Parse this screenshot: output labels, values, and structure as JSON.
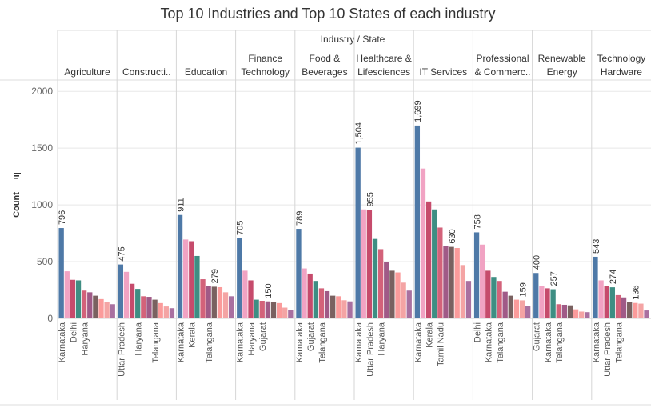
{
  "chart_data": {
    "type": "bar",
    "title": "Top 10 Industries and Top 10 States of each industry",
    "column_header": "Industry / State",
    "ylabel": "Count",
    "ylim": [
      0,
      2100
    ],
    "yticks": [
      0,
      500,
      1000,
      1500,
      2000
    ],
    "grid": true,
    "legend": "none",
    "bar_colors": [
      "#4e79a7",
      "#f1a3c3",
      "#c64b6c",
      "#3e8e83",
      "#d3627a",
      "#a05a87",
      "#7a6160",
      "#fb9b9b",
      "#f4a4a4",
      "#a970a0"
    ],
    "panels": [
      {
        "header": [
          "Agriculture"
        ],
        "values": [
          796,
          415,
          340,
          335,
          245,
          230,
          200,
          170,
          145,
          125
        ],
        "states": [
          "Karnataka",
          "",
          "Delhi",
          "",
          "Haryana",
          "",
          "",
          "",
          "",
          ""
        ],
        "labels": [
          "796",
          "",
          "",
          "",
          "",
          "",
          "",
          "",
          "",
          ""
        ]
      },
      {
        "header": [
          "Constructi.."
        ],
        "values": [
          475,
          410,
          305,
          260,
          195,
          190,
          165,
          135,
          105,
          90
        ],
        "states": [
          "Uttar Pradesh",
          "",
          "",
          "Haryana",
          "",
          "",
          "Telangana",
          "",
          "",
          ""
        ],
        "labels": [
          "475",
          "",
          "",
          "",
          "",
          "",
          "",
          "",
          "",
          ""
        ]
      },
      {
        "header": [
          "Education"
        ],
        "values": [
          911,
          695,
          680,
          550,
          345,
          285,
          279,
          275,
          230,
          195
        ],
        "states": [
          "Karnataka",
          "",
          "Kerala",
          "",
          "",
          "Telangana",
          "",
          "",
          "",
          ""
        ],
        "labels": [
          "911",
          "",
          "",
          "",
          "",
          "",
          "279",
          "",
          "",
          ""
        ]
      },
      {
        "header": [
          "Finance",
          "Technology"
        ],
        "values": [
          705,
          420,
          335,
          165,
          155,
          150,
          145,
          135,
          95,
          75
        ],
        "states": [
          "Karnataka",
          "",
          "Haryana",
          "",
          "Gujarat",
          "",
          "",
          "",
          "",
          ""
        ],
        "labels": [
          "705",
          "",
          "",
          "",
          "",
          "150",
          "",
          "",
          "",
          ""
        ]
      },
      {
        "header": [
          "Food &",
          "Beverages"
        ],
        "values": [
          789,
          440,
          395,
          330,
          265,
          240,
          200,
          195,
          160,
          150
        ],
        "states": [
          "Karnataka",
          "",
          "Gujarat",
          "",
          "Telangana",
          "",
          "",
          "",
          "",
          ""
        ],
        "labels": [
          "789",
          "",
          "",
          "",
          "",
          "",
          "",
          "",
          "",
          ""
        ]
      },
      {
        "header": [
          "Healthcare &",
          "Lifesciences"
        ],
        "values": [
          1504,
          960,
          955,
          700,
          610,
          500,
          420,
          405,
          315,
          245
        ],
        "states": [
          "Karnataka",
          "",
          "Uttar Pradesh",
          "",
          "Haryana",
          "",
          "",
          "",
          "",
          ""
        ],
        "labels": [
          "1,504",
          "",
          "955",
          "",
          "",
          "",
          "",
          "",
          "",
          ""
        ]
      },
      {
        "header": [
          "IT Services"
        ],
        "values": [
          1699,
          1320,
          1030,
          960,
          800,
          635,
          630,
          620,
          470,
          330
        ],
        "states": [
          "Karnataka",
          "",
          "Kerala",
          "",
          "Tamil Nadu",
          "",
          "",
          "",
          "",
          ""
        ],
        "labels": [
          "1,699",
          "",
          "",
          "",
          "",
          "",
          "630",
          "",
          "",
          ""
        ]
      },
      {
        "header": [
          "Professional",
          "& Commerc.."
        ],
        "values": [
          758,
          650,
          420,
          365,
          330,
          235,
          200,
          165,
          159,
          110
        ],
        "states": [
          "Delhi",
          "",
          "Karnataka",
          "",
          "Telangana",
          "",
          "",
          "",
          "",
          ""
        ],
        "labels": [
          "758",
          "",
          "",
          "",
          "",
          "",
          "",
          "",
          "159",
          ""
        ]
      },
      {
        "header": [
          "Renewable",
          "Energy"
        ],
        "values": [
          400,
          285,
          265,
          257,
          125,
          120,
          115,
          80,
          60,
          55
        ],
        "states": [
          "Gujarat",
          "",
          "Karnataka",
          "",
          "Telangana",
          "",
          "",
          "",
          "",
          ""
        ],
        "labels": [
          "400",
          "",
          "",
          "257",
          "",
          "",
          "",
          "",
          "",
          ""
        ]
      },
      {
        "header": [
          "Technology",
          "Hardware"
        ],
        "values": [
          543,
          335,
          285,
          274,
          205,
          185,
          145,
          136,
          130,
          70
        ],
        "states": [
          "Karnataka",
          "",
          "Uttar Pradesh",
          "",
          "Telangana",
          "",
          "",
          "",
          "",
          ""
        ],
        "labels": [
          "543",
          "",
          "",
          "274",
          "",
          "",
          "",
          "136",
          "",
          ""
        ]
      }
    ]
  }
}
